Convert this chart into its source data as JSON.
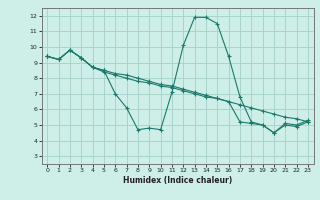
{
  "title": "",
  "xlabel": "Humidex (Indice chaleur)",
  "background_color": "#ceeee8",
  "grid_color": "#aad4ce",
  "line_color": "#1a7a6a",
  "xlim": [
    -0.5,
    23.5
  ],
  "ylim": [
    2.5,
    12.5
  ],
  "xticks": [
    0,
    1,
    2,
    3,
    4,
    5,
    6,
    7,
    8,
    9,
    10,
    11,
    12,
    13,
    14,
    15,
    16,
    17,
    18,
    19,
    20,
    21,
    22,
    23
  ],
  "yticks": [
    3,
    4,
    5,
    6,
    7,
    8,
    9,
    10,
    11,
    12
  ],
  "line1_x": [
    0,
    1,
    2,
    3,
    4,
    5,
    6,
    7,
    8,
    9,
    10,
    11,
    12,
    13,
    14,
    15,
    16,
    17,
    18,
    19,
    20,
    21,
    22,
    23
  ],
  "line1_y": [
    9.4,
    9.2,
    9.8,
    9.3,
    8.7,
    8.5,
    7.0,
    6.1,
    4.7,
    4.8,
    4.7,
    7.1,
    10.1,
    11.9,
    11.9,
    11.5,
    9.4,
    6.8,
    5.2,
    5.0,
    4.5,
    5.0,
    4.9,
    5.2
  ],
  "line2_x": [
    0,
    1,
    2,
    3,
    4,
    5,
    6,
    7,
    8,
    9,
    10,
    11,
    12,
    13,
    14,
    15,
    16,
    17,
    18,
    19,
    20,
    21,
    22,
    23
  ],
  "line2_y": [
    9.4,
    9.2,
    9.8,
    9.3,
    8.7,
    8.5,
    8.3,
    8.2,
    8.0,
    7.8,
    7.6,
    7.5,
    7.3,
    7.1,
    6.9,
    6.7,
    6.5,
    6.3,
    6.1,
    5.9,
    5.7,
    5.5,
    5.4,
    5.2
  ],
  "line3_x": [
    0,
    1,
    2,
    3,
    4,
    5,
    6,
    7,
    8,
    9,
    10,
    11,
    12,
    13,
    14,
    15,
    16,
    17,
    18,
    19,
    20,
    21,
    22,
    23
  ],
  "line3_y": [
    9.4,
    9.2,
    9.8,
    9.3,
    8.7,
    8.4,
    8.2,
    8.0,
    7.8,
    7.7,
    7.5,
    7.4,
    7.2,
    7.0,
    6.8,
    6.7,
    6.5,
    5.2,
    5.1,
    5.0,
    4.5,
    5.1,
    5.0,
    5.3
  ]
}
